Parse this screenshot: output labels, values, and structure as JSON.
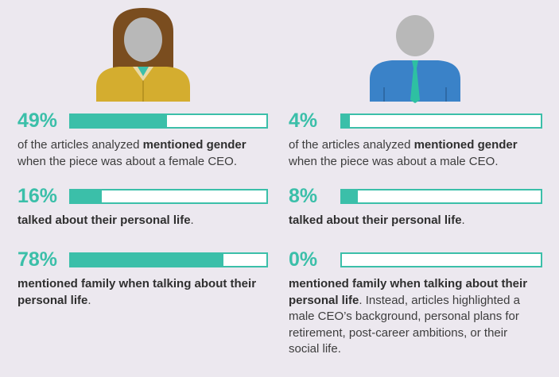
{
  "colors": {
    "background": "#ece8ef",
    "accent": "#3bbfa9",
    "female_shirt": "#d4ad2f",
    "female_hair": "#7a4d1f",
    "male_shirt": "#3a82c8",
    "male_tie": "#2ec0a2",
    "head": "#b8b8b8"
  },
  "icons": {
    "female": "female-ceo-icon",
    "male": "male-ceo-icon"
  },
  "chart_data": [
    {
      "type": "bar",
      "group": "female CEO",
      "categories": [
        "mentioned gender",
        "talked about their personal life",
        "mentioned family when talking about their personal life"
      ],
      "values": [
        49,
        16,
        78
      ],
      "ylim": [
        0,
        100
      ],
      "labels": [
        "49%",
        "16%",
        "78%"
      ],
      "descriptions": [
        {
          "pre": "of the articles analyzed ",
          "bold": "mentioned gender",
          "post": " when the piece was about a female CEO."
        },
        {
          "pre": "",
          "bold": "talked about their personal life",
          "post": "."
        },
        {
          "pre": "",
          "bold": "mentioned family when talking about their personal life",
          "post": "."
        }
      ]
    },
    {
      "type": "bar",
      "group": "male CEO",
      "categories": [
        "mentioned gender",
        "talked about their personal life",
        "mentioned family when talking about their personal life"
      ],
      "values": [
        4,
        8,
        0
      ],
      "ylim": [
        0,
        100
      ],
      "labels": [
        "4%",
        "8%",
        "0%"
      ],
      "descriptions": [
        {
          "pre": "of the articles analyzed ",
          "bold": "mentioned gender",
          "post": " when the piece was about a male CEO."
        },
        {
          "pre": "",
          "bold": "talked about their personal life",
          "post": "."
        },
        {
          "pre": "",
          "bold": "mentioned family when talking about their personal life",
          "post": ". Instead, articles highlighted a male CEO’s background, personal plans for retirement, post-career ambitions, or their social life."
        }
      ]
    }
  ]
}
